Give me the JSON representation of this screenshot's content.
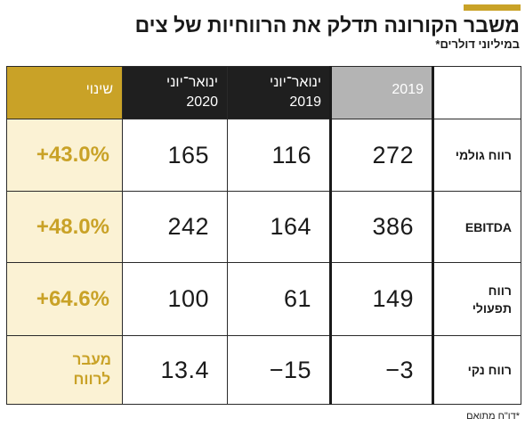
{
  "header": {
    "title": "משבר הקורונה תדלק את הרווחיות של צים",
    "subtitle": "במיליוני דולרים*"
  },
  "table": {
    "columns": {
      "change": "שינוי",
      "jan_jun_2020": "ינואר־יוני\n2020",
      "jan_jun_2019": "ינואר־יוני\n2019",
      "year_2019": "2019",
      "label": ""
    },
    "rows": [
      {
        "label": "רווח גולמי",
        "year_2019": "272",
        "jan_jun_2019": "116",
        "jan_jun_2020": "165",
        "change": "+43.0%"
      },
      {
        "label": "EBITDA",
        "year_2019": "386",
        "jan_jun_2019": "164",
        "jan_jun_2020": "242",
        "change": "+48.0%"
      },
      {
        "label": "רווח\nתפעולי",
        "year_2019": "149",
        "jan_jun_2019": "61",
        "jan_jun_2020": "100",
        "change": "+64.6%"
      },
      {
        "label": "רווח נקי",
        "year_2019": "−3",
        "jan_jun_2019": "−15",
        "jan_jun_2020": "13.4",
        "change": "מעבר\nלרווח"
      }
    ]
  },
  "footnote": "*דו\"ח מתואם",
  "colors": {
    "accent": "#c9a227",
    "header_dark": "#1f1f1f",
    "header_gray": "#b4b4b4",
    "change_bg": "#fbf2d4"
  }
}
